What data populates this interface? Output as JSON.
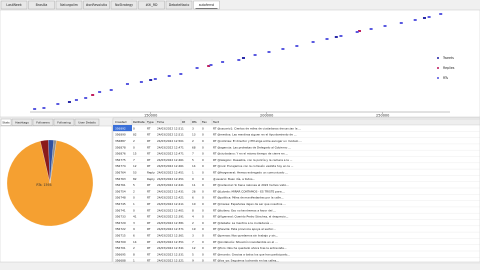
{
  "tabs": [
    "LastWeek",
    "Brasília",
    "Naturgalim",
    "#onRevolutio",
    "NoStrategy",
    "#Xi_RD",
    "DebateNacio",
    "autoferrol"
  ],
  "chart": {
    "type": "scatter",
    "xlim": [
      98000,
      279000
    ],
    "xticks": [
      150000,
      200000,
      250000
    ],
    "ylim": [
      0,
      100
    ],
    "legend": "right",
    "series": [
      {
        "name": "Tweets",
        "color": "#2a2aa8",
        "x": [
          115000,
          150000,
          190000,
          230000,
          268000
        ],
        "values": [
          10,
          32,
          54,
          75,
          94
        ]
      },
      {
        "name": "Replies",
        "color": "#c02060",
        "x": [
          125000,
          175000,
          240000
        ],
        "values": [
          17,
          46,
          81
        ]
      },
      {
        "name": "RTs",
        "color": "#5a5ae0",
        "x": [
          100000,
          104000,
          110000,
          118000,
          122000,
          128000,
          133000,
          140000,
          146000,
          152000,
          158000,
          163000,
          170000,
          176000,
          181000,
          188000,
          195000,
          201000,
          207000,
          213000,
          220000,
          226000,
          232000,
          239000,
          245000,
          251000,
          258000,
          264000,
          270000,
          275000
        ],
        "values": [
          3,
          4,
          8,
          12,
          14,
          20,
          22,
          28,
          30,
          33,
          36,
          38,
          44,
          47,
          50,
          52,
          57,
          60,
          63,
          66,
          70,
          73,
          76,
          80,
          83,
          86,
          89,
          92,
          95,
          98
        ]
      }
    ]
  },
  "side_tabs": [
    "Stats",
    "Hashtags",
    "Followers",
    "Following",
    "User Details"
  ],
  "pie": {
    "type": "pie",
    "label": "RTs: 1594",
    "categories": [
      "RTs",
      "Tweets",
      "Replies",
      "Other"
    ],
    "values": [
      94,
      3,
      2,
      1
    ],
    "colors": [
      "#f5a031",
      "#8b1a1a",
      "#3050a0",
      "#909090"
    ]
  },
  "table": {
    "columns": [
      "Created",
      "RetDate",
      "Type",
      "Time",
      "Rt",
      "RTs",
      "Fav",
      "Text"
    ],
    "rows": [
      [
        "356892",
        "0",
        "RT",
        "24/03/2022 12:51",
        "1",
        "3",
        "0",
        "RT @usuario1: Cientos de miles de ciudadanos denuncian la ..."
      ],
      [
        "356890",
        "82",
        "RT",
        "24/03/2022 12:51",
        "1",
        "13",
        "0",
        "RT @medios: Las mentiras siguen en el Ayuntamiento de ..."
      ],
      [
        "356887",
        "2",
        "RT",
        "24/03/2022 12:50",
        "1",
        "2",
        "0",
        "RT @noticias: El director y PM elige entre escoger un modelo ..."
      ],
      [
        "356878",
        "0",
        "RT",
        "24/03/2022 12:47",
        "1",
        "68",
        "0",
        "RT @agencia: Las protestas de Delegado al Gobierno ..."
      ],
      [
        "356876",
        "15",
        "RT",
        "24/03/2022 12:47",
        "1",
        "7",
        "0",
        "RT @ciudadano: Y en el mismo tiempo de cierre en ..."
      ],
      [
        "356775",
        "7",
        "RT",
        "24/03/2022 12:46",
        "1",
        "5",
        "0",
        "RT @lalegion: Desastre, con la policía y la camera a la ..."
      ],
      [
        "356774",
        "12",
        "RT",
        "24/03/2022 12:46",
        "1",
        "14",
        "0",
        "RT @ruiz: Encajamos con la comisión vestida hoy en la ..."
      ],
      [
        "356764",
        "53",
        "Reply",
        "24/03/2022 12:45",
        "1",
        "1",
        "0",
        "RT @fevgeneral: Hemos entregado un comunicado ..."
      ],
      [
        "356763",
        "82",
        "Reply",
        "24/03/2022 12:45",
        "1",
        "0",
        "0",
        "@usuario: Buen día, a todos..."
      ],
      [
        "356761",
        "5",
        "RT",
        "24/03/2022 12:44",
        "1",
        "11",
        "0",
        "RT @redsocial: Si tiene razones el 2022 hemos visto..."
      ],
      [
        "356754",
        "2",
        "RT",
        "24/03/2022 12:43",
        "1",
        "26",
        "0",
        "RT @Lobeto: MIRAR CONTAMOS - ES TRISTE para ..."
      ],
      [
        "356748",
        "0",
        "RT",
        "24/03/2022 12:42",
        "1",
        "6",
        "0",
        "RT @politica: Miles de manifestantes por la calle..."
      ],
      [
        "356745",
        "1",
        "RT",
        "24/03/2022 12:41",
        "1",
        "10",
        "0",
        "RT @marea: Españoles dejan de ser que nosotros ..."
      ],
      [
        "356741",
        "0",
        "RT",
        "24/03/2022 12:40",
        "1",
        "8",
        "0",
        "RT @tuitero: Eso no tendremos a favor del ..."
      ],
      [
        "356733",
        "41",
        "RT",
        "24/03/2022 12:39",
        "1",
        "4",
        "0",
        "RT @Vgeneral: Querido Pedro Sánchez, el desprecio..."
      ],
      [
        "356729",
        "3",
        "RT",
        "24/03/2022 12:38",
        "1",
        "2",
        "0",
        "RT @debate: La mentira a la ciudadanía ..."
      ],
      [
        "356722",
        "9",
        "RT",
        "24/03/2022 12:37",
        "1",
        "19",
        "0",
        "RT @Sevilla: Esta provincia apoya al sector..."
      ],
      [
        "356715",
        "6",
        "RT",
        "24/03/2022 12:36",
        "1",
        "3",
        "0",
        "RT @prensa: Nos quedamos sin trabajo y sin..."
      ],
      [
        "356709",
        "14",
        "RT",
        "24/03/2022 12:35",
        "1",
        "7",
        "0",
        "RT @Andalucía: Situación insostenible en el ..."
      ],
      [
        "356701",
        "2",
        "RT",
        "24/03/2022 12:34",
        "1",
        "12",
        "0",
        "RT @foro: Nos ha quedado ahora tras la entrevista..."
      ],
      [
        "356695",
        "8",
        "RT",
        "24/03/2022 12:33",
        "1",
        "5",
        "0",
        "RT @mundo: Gracias a todos los que han participado..."
      ],
      [
        "356688",
        "1",
        "RT",
        "24/03/2022 12:32",
        "1",
        "9",
        "0",
        "RT @los_ya: Seguimos luchando en las calles..."
      ]
    ]
  }
}
